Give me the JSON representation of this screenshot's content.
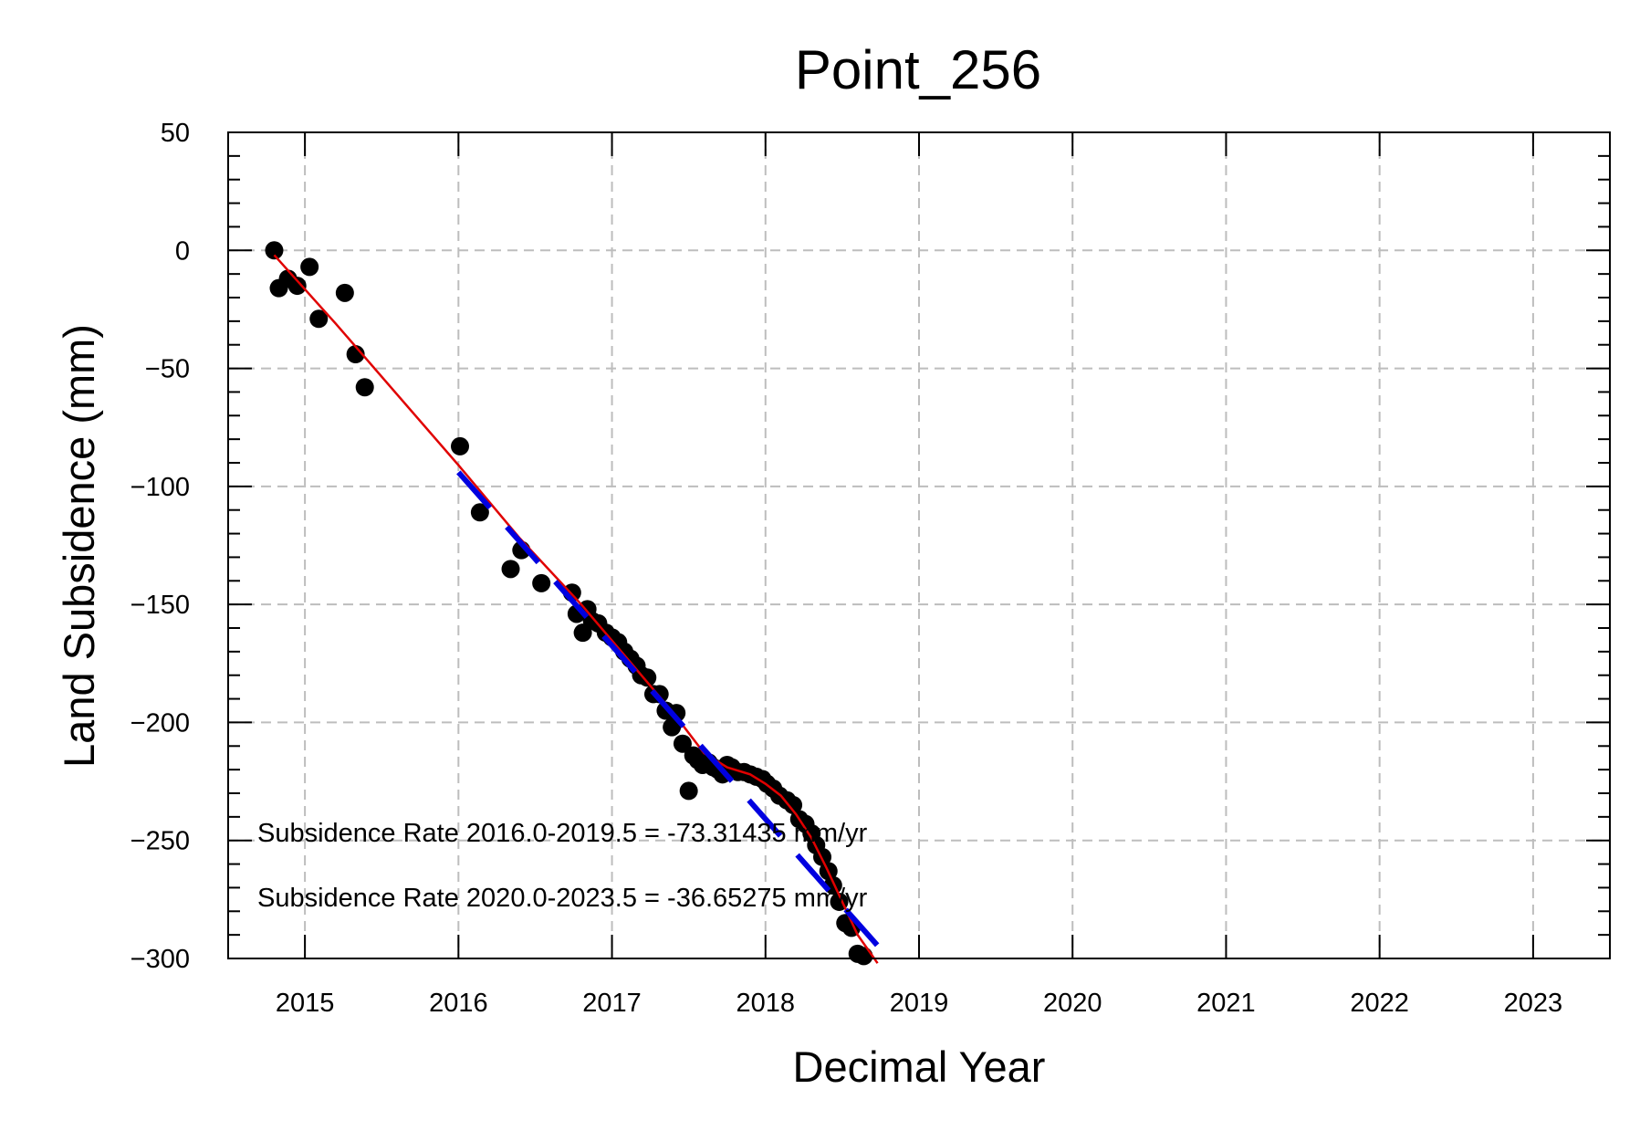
{
  "chart_data": {
    "type": "scatter",
    "title": "Point_256",
    "xlabel": "Decimal Year",
    "ylabel": "Land Subsidence (mm)",
    "xlim": [
      2014.5,
      2023.5
    ],
    "ylim": [
      -300,
      50
    ],
    "xticks": [
      2015,
      2016,
      2017,
      2018,
      2019,
      2020,
      2021,
      2022,
      2023
    ],
    "yticks": [
      50,
      0,
      -50,
      -100,
      -150,
      -200,
      -250,
      -300
    ],
    "ytick_labels": [
      "50",
      "0",
      "−50",
      "−100",
      "−150",
      "−200",
      "−250",
      "−300"
    ],
    "grid": true,
    "annotations": [
      "Subsidence Rate 2016.0-2019.5 = -73.31435 mm/yr",
      "Subsidence Rate 2020.0-2023.5 = -36.65275 mm/yr"
    ],
    "series": [
      {
        "kind": "points",
        "color": "#000000",
        "x": [
          2014.8,
          2014.83,
          2014.89,
          2014.95,
          2015.03,
          2015.09,
          2015.26,
          2015.33,
          2015.39,
          2016.01,
          2016.14,
          2016.34,
          2016.41,
          2016.54,
          2016.74,
          2016.77,
          2016.81,
          2016.84,
          2016.87,
          2016.91,
          2016.96,
          2017.0,
          2017.04,
          2017.08,
          2017.12,
          2017.16,
          2017.19,
          2017.23,
          2017.27,
          2017.31,
          2017.35,
          2017.39,
          2017.42,
          2017.46,
          2017.5,
          2017.53,
          2017.56,
          2017.59,
          2017.63,
          2017.66,
          2017.69,
          2017.72,
          2017.75,
          2017.78,
          2017.82,
          2017.86,
          2017.9,
          2017.94,
          2017.98,
          2018.01,
          2018.05,
          2018.09,
          2018.14,
          2018.18,
          2018.22,
          2018.26,
          2018.3,
          2018.33,
          2018.37,
          2018.41,
          2018.44,
          2018.48,
          2018.52,
          2018.56,
          2018.6,
          2018.64
        ],
        "y": [
          0,
          -16,
          -12,
          -15,
          -7,
          -29,
          -18,
          -44,
          -58,
          -83,
          -111,
          -135,
          -127,
          -141,
          -145,
          -154,
          -162,
          -152,
          -157,
          -158,
          -162,
          -164,
          -166,
          -170,
          -173,
          -176,
          -180,
          -181,
          -188,
          -188,
          -195,
          -202,
          -196,
          -209,
          -229,
          -214,
          -216,
          -218,
          -217,
          -219,
          -220,
          -222,
          -218,
          -219,
          -221,
          -221,
          -222,
          -223,
          -224,
          -226,
          -228,
          -231,
          -233,
          -235,
          -241,
          -243,
          -247,
          -252,
          -257,
          -263,
          -269,
          -276,
          -285,
          -287,
          -298,
          -299
        ]
      },
      {
        "kind": "fit-line",
        "color": "#e00000",
        "x": [
          2014.8,
          2015.2,
          2015.6,
          2016.0,
          2016.4,
          2016.8,
          2017.1,
          2017.4,
          2017.6,
          2017.75,
          2017.9,
          2018.0,
          2018.1,
          2018.2,
          2018.3,
          2018.4,
          2018.5,
          2018.6,
          2018.73
        ],
        "y": [
          -2,
          -31,
          -61,
          -91,
          -122,
          -150,
          -173,
          -196,
          -213,
          -219,
          -222,
          -226,
          -231,
          -239,
          -249,
          -262,
          -276,
          -290,
          -302
        ]
      },
      {
        "kind": "trend-dashed",
        "color": "#0000e0",
        "x": [
          2016.0,
          2018.75
        ],
        "y": [
          -94,
          -296
        ]
      }
    ]
  }
}
